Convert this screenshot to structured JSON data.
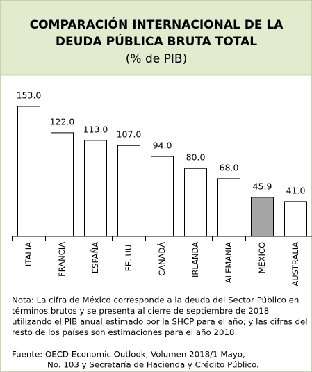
{
  "chart_data": {
    "type": "bar",
    "title": [
      "COMPARACIÓN INTERNACIONAL DE LA",
      "DEUDA PÚBLICA BRUTA TOTAL"
    ],
    "subtitle": "(% de PIB)",
    "categories": [
      "ITALIA",
      "FRANCIA",
      "ESPAÑA",
      "EE. UU.",
      "CANADÁ",
      "IRLANDA",
      "ALEMANIA",
      "MÉXICO",
      "AUSTRALIA"
    ],
    "values": [
      153,
      122,
      113,
      107,
      94,
      80,
      68,
      45.9,
      41
    ],
    "value_labels": [
      "153.0",
      "122.0",
      "113.0",
      "107.0",
      "94.0",
      "80.0",
      "68.0",
      "45.9",
      "41.0"
    ],
    "colors": [
      "#ffffff",
      "#ffffff",
      "#ffffff",
      "#ffffff",
      "#ffffff",
      "#ffffff",
      "#ffffff",
      "#a6a6a6",
      "#ffffff"
    ],
    "ylim": [
      0,
      180
    ],
    "note": [
      "Nota: La cifra de México corresponde a la deuda del Sector Público en",
      "términos brutos y se presenta al cierre de septiembre de 2018",
      "utilizando el PIB anual estimado por la SHCP para el año; y las cifras del",
      "resto de los países son estimaciones para el año 2018."
    ],
    "source": [
      "Fuente: OECD Economic Outlook, Volumen 2018/1 Mayo,",
      "No. 103 y Secretaría de Hacienda y Crédito Público."
    ]
  }
}
